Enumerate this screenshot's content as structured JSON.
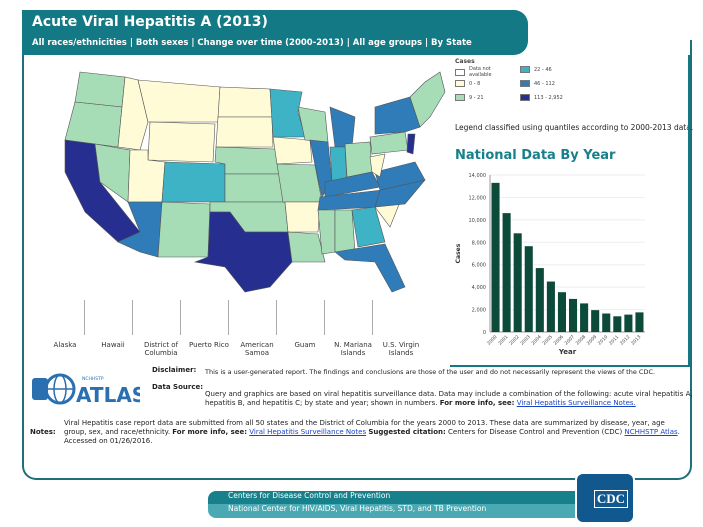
{
  "header": {
    "title": "Acute Viral Hepatitis  A (2013)",
    "subtitle": "All races/ethnicities | Both sexes | Change over time (2000-2013) | All age groups | By State"
  },
  "legend": {
    "title": "Cases",
    "items": [
      {
        "label": "Data not available",
        "color": "#ffffff"
      },
      {
        "label": "0 - 8",
        "color": "#fffbd6"
      },
      {
        "label": "9 - 21",
        "color": "#a6dcb6"
      },
      {
        "label": "22 - 46",
        "color": "#3fb3c6"
      },
      {
        "label": "46 - 112",
        "color": "#2f7cb8"
      },
      {
        "label": "113 - 2,952",
        "color": "#262f8f"
      }
    ],
    "note": "Legend classified using quantiles according to 2000-2013 data."
  },
  "territories": [
    "Alaska",
    "Hawaii",
    "District of Columbia",
    "Puerto Rico",
    "American Samoa",
    "Guam",
    "N. Mariana Islands",
    "U.S. Virgin Islands"
  ],
  "chart_data": {
    "type": "bar",
    "title": "National Data By Year",
    "xlabel": "Year",
    "ylabel": "Cases",
    "ylim": [
      0,
      14000
    ],
    "yticks": [
      "0",
      "2,000",
      "4,000",
      "6,000",
      "8,000",
      "10,000",
      "12,000",
      "14,000"
    ],
    "categories": [
      "2000",
      "2001",
      "2002",
      "2003",
      "2004",
      "2005",
      "2006",
      "2007",
      "2008",
      "2009",
      "2010",
      "2011",
      "2012",
      "2013"
    ],
    "values": [
      13300,
      10600,
      8800,
      7650,
      5700,
      4500,
      3550,
      2950,
      2550,
      1950,
      1650,
      1400,
      1550,
      1750
    ],
    "bar_color": "#0c4a3a",
    "grid": true
  },
  "info": {
    "disclaimer_label": "Disclaimer:",
    "disclaimer": "This is a user-generated report. The findings and conclusions are those of the user and do not necessarily represent the views of the CDC.",
    "source_label": "Data Source:",
    "source": "Query and graphics are based on viral hepatitis surveillance data. Data may include a combination of the following: acute viral hepatitis A, hepatitis B, and hepatitis C; by state and year; shown in numbers.",
    "more": "For more info, see:",
    "link": "Viral Hepatitis Surveillance Notes.",
    "notes_label": "Notes:",
    "notes": "Viral Hepatitis case report data are submitted from all 50 states and the District of Columbia for the years 2000 to 2013. These data are summarized by disease, year, age group, sex, and race/ethnicity.",
    "notes_link": "Viral Hepatitis Surveillance Notes",
    "citation_label": "Suggested citation:",
    "citation": "Centers for Disease Control and Prevention (CDC)",
    "citation_link": "NCHHSTP Atlas",
    "accessed": ". Accessed on 01/26/2016."
  },
  "logo": {
    "text": "ATLAS",
    "small": "NCHHSTP"
  },
  "footer": {
    "line1": "Centers for Disease Control and Prevention",
    "line2": "National Center for HIV/AIDS, Viral Hepatitis, STD, and TB Prevention",
    "cdc": "CDC"
  }
}
